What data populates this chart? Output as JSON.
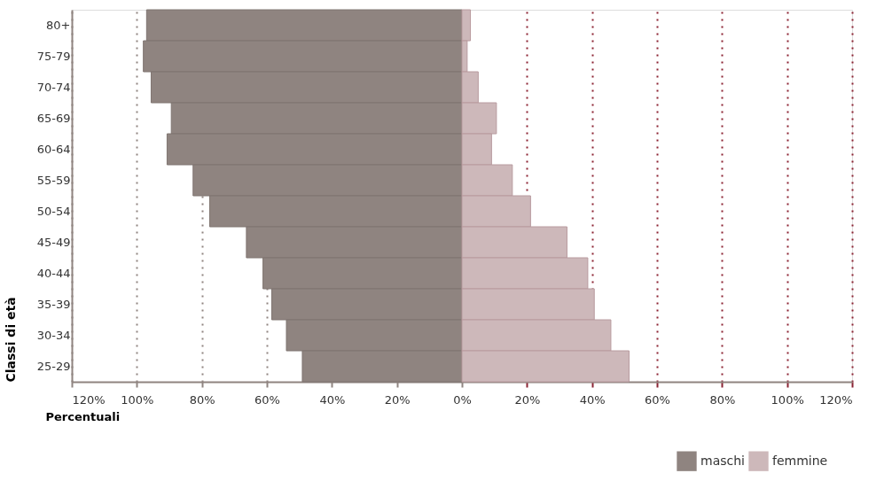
{
  "chart_data": {
    "type": "bar",
    "orientation": "horizontal",
    "stacked": true,
    "xlabel": "Percentuali",
    "ylabel": "Classi di età",
    "categories": [
      "80+",
      "75-79",
      "70-74",
      "65-69",
      "60-64",
      "55-59",
      "50-54",
      "45-49",
      "40-44",
      "35-39",
      "30-34",
      "25-29"
    ],
    "series": [
      {
        "name": "maschi",
        "color": "#8f8480",
        "values": [
          -97,
          -98,
          -95.6,
          -89.4,
          -90.7,
          -82.7,
          -77.6,
          -66.3,
          -61.2,
          -58.5,
          -54,
          -49.1
        ]
      },
      {
        "name": "femmine",
        "color": "#cdb8ba",
        "values": [
          2.6,
          1.6,
          5,
          10.6,
          9.1,
          15.5,
          21.1,
          32.3,
          38.7,
          40.7,
          45.8,
          51.4
        ]
      }
    ],
    "xlim": [
      -120,
      120
    ],
    "xticks": [
      {
        "value": -120,
        "label": "120%"
      },
      {
        "value": -100,
        "label": "100%"
      },
      {
        "value": -80,
        "label": "80%"
      },
      {
        "value": -60,
        "label": "60%"
      },
      {
        "value": -40,
        "label": "40%"
      },
      {
        "value": -20,
        "label": "20%"
      },
      {
        "value": 0,
        "label": "0%"
      },
      {
        "value": 20,
        "label": "20%"
      },
      {
        "value": 40,
        "label": "40%"
      },
      {
        "value": 60,
        "label": "60%"
      },
      {
        "value": 80,
        "label": "80%"
      },
      {
        "value": 100,
        "label": "100%"
      },
      {
        "value": 120,
        "label": "120%"
      }
    ],
    "grid": "x",
    "legend": "bottom right"
  }
}
